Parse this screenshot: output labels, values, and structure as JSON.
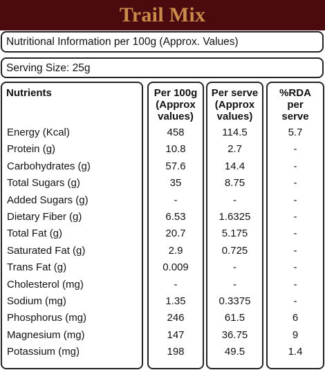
{
  "title": "Trail Mix",
  "info": "Nutritional Information per 100g (Approx. Values)",
  "serving": "Serving Size:  25g",
  "headers": {
    "nutrients": "Nutrients",
    "per100": [
      "Per 100g",
      "(Approx",
      "values)"
    ],
    "perServe": [
      "Per serve",
      "(Approx",
      "values)"
    ],
    "rda": [
      "%RDA",
      "per",
      "serve"
    ]
  },
  "rows": [
    {
      "name": "Energy (Kcal)",
      "per100": "458",
      "perServe": "114.5",
      "rda": "5.7"
    },
    {
      "name": "Protein (g)",
      "per100": "10.8",
      "perServe": "2.7",
      "rda": "-"
    },
    {
      "name": "Carbohydrates (g)",
      "per100": "57.6",
      "perServe": "14.4",
      "rda": "-"
    },
    {
      "name": "Total Sugars (g)",
      "per100": "35",
      "perServe": "8.75",
      "rda": "-"
    },
    {
      "name": "Added Sugars (g)",
      "per100": "-",
      "perServe": "-",
      "rda": "-"
    },
    {
      "name": "Dietary Fiber (g)",
      "per100": "6.53",
      "perServe": "1.6325",
      "rda": "-"
    },
    {
      "name": "Total Fat (g)",
      "per100": "20.7",
      "perServe": "5.175",
      "rda": "-"
    },
    {
      "name": "Saturated Fat (g)",
      "per100": "2.9",
      "perServe": "0.725",
      "rda": "-"
    },
    {
      "name": "Trans Fat (g)",
      "per100": "0.009",
      "perServe": "-",
      "rda": "-"
    },
    {
      "name": "Cholesterol (mg)",
      "per100": "-",
      "perServe": "-",
      "rda": "-"
    },
    {
      "name": "Sodium (mg)",
      "per100": "1.35",
      "perServe": "0.3375",
      "rda": "-"
    },
    {
      "name": "Phosphorus (mg)",
      "per100": "246",
      "perServe": "61.5",
      "rda": "6"
    },
    {
      "name": "Magnesium (mg)",
      "per100": "147",
      "perServe": "36.75",
      "rda": "9"
    },
    {
      "name": "Potassium (mg)",
      "per100": "198",
      "perServe": "49.5",
      "rda": "1.4"
    }
  ]
}
